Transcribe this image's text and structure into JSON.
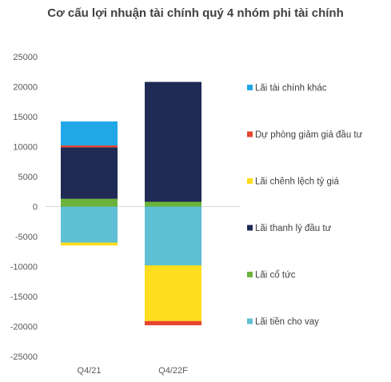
{
  "chart_data": {
    "type": "bar",
    "stacked": true,
    "title": "Cơ cấu lợi nhuận tài chính quý 4 nhóm phi tài chính",
    "categories": [
      "Q4/21",
      "Q4/22F"
    ],
    "ylim": [
      -25000,
      25000
    ],
    "yticks": [
      25000,
      20000,
      15000,
      10000,
      5000,
      0,
      -5000,
      -10000,
      -15000,
      -20000,
      -25000
    ],
    "ytick_labels": [
      "25000",
      "20000",
      "15000",
      "10000",
      "5000",
      "0",
      "-5000",
      "-10000",
      "-15000",
      "-20000",
      "-25000"
    ],
    "grid": false,
    "legend_position": "right",
    "series": [
      {
        "name": "Lãi tiền cho vay",
        "color": "#5FBFD4",
        "values": [
          -6000,
          -9800
        ]
      },
      {
        "name": "Lãi cổ tức",
        "color": "#6BB33A",
        "values": [
          1300,
          800
        ]
      },
      {
        "name": "Lãi thanh lý đầu tư",
        "color": "#1F2A55",
        "values": [
          8600,
          20000
        ]
      },
      {
        "name": "Lãi chênh lệch tỷ giá",
        "color": "#FFDD1F",
        "values": [
          -500,
          -9300
        ]
      },
      {
        "name": "Dự phòng giảm giá đầu tư",
        "color": "#E8442E",
        "values": [
          300,
          -700
        ]
      },
      {
        "name": "Lãi tài chính khác",
        "color": "#1FA7E8",
        "values": [
          4000,
          0
        ]
      }
    ],
    "legend_order": [
      "Lãi tài chính khác",
      "Dự phòng giảm giá đầu tư",
      "Lãi chênh lệch tỷ giá",
      "Lãi thanh lý đầu tư",
      "Lãi cổ tức",
      "Lãi tiền cho vay"
    ]
  }
}
